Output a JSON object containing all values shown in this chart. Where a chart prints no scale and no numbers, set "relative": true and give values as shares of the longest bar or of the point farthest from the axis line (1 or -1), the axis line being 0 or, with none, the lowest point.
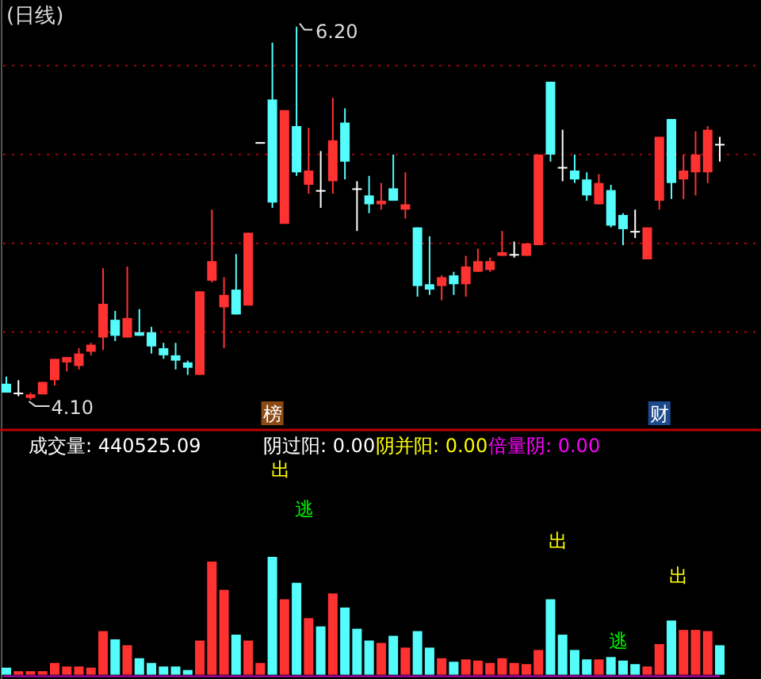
{
  "chart_data": [
    {
      "type": "candlestick",
      "title": "(日线)",
      "categories": [
        null,
        null,
        null,
        null,
        null,
        null,
        null,
        null,
        null,
        null,
        null,
        null,
        null,
        null,
        null,
        null,
        null,
        null,
        null,
        null,
        null,
        null,
        null,
        null,
        null,
        null,
        null,
        null,
        null,
        null,
        null,
        null,
        null,
        null,
        null,
        null,
        null,
        null,
        null,
        null,
        null,
        null,
        null,
        null,
        null,
        null,
        null,
        null,
        null,
        null,
        null,
        null,
        null,
        null,
        null,
        null,
        null,
        null,
        null,
        null
      ],
      "ohlc": [
        [
          4.19,
          4.23,
          4.14,
          4.14
        ],
        [
          4.14,
          4.21,
          4.12,
          4.14
        ],
        [
          4.11,
          4.14,
          4.1,
          4.13
        ],
        [
          4.13,
          4.2,
          4.13,
          4.2
        ],
        [
          4.21,
          4.33,
          4.18,
          4.33
        ],
        [
          4.31,
          4.34,
          4.26,
          4.34
        ],
        [
          4.29,
          4.39,
          4.27,
          4.36
        ],
        [
          4.37,
          4.42,
          4.35,
          4.41
        ],
        [
          4.45,
          4.84,
          4.38,
          4.64
        ],
        [
          4.55,
          4.6,
          4.43,
          4.46
        ],
        [
          4.45,
          4.85,
          4.45,
          4.56
        ],
        [
          4.48,
          4.61,
          4.46,
          4.46
        ],
        [
          4.48,
          4.51,
          4.36,
          4.4
        ],
        [
          4.39,
          4.42,
          4.33,
          4.35
        ],
        [
          4.35,
          4.42,
          4.27,
          4.32
        ],
        [
          4.31,
          4.32,
          4.24,
          4.28
        ],
        [
          4.24,
          4.71,
          4.24,
          4.71
        ],
        [
          4.77,
          5.17,
          4.76,
          4.88
        ],
        [
          4.62,
          4.79,
          4.39,
          4.69
        ],
        [
          4.72,
          4.92,
          4.58,
          4.58
        ],
        [
          4.63,
          5.04,
          4.63,
          5.04
        ],
        [
          5.55,
          5.55,
          5.55,
          5.55
        ],
        [
          5.79,
          6.11,
          5.18,
          5.21
        ],
        [
          5.09,
          5.73,
          5.09,
          5.73
        ],
        [
          5.64,
          6.2,
          5.36,
          5.38
        ],
        [
          5.31,
          5.63,
          5.26,
          5.39
        ],
        [
          5.28,
          5.5,
          5.18,
          5.28
        ],
        [
          5.33,
          5.8,
          5.26,
          5.56
        ],
        [
          5.66,
          5.74,
          5.34,
          5.44
        ],
        [
          5.29,
          5.33,
          5.05,
          5.29
        ],
        [
          5.25,
          5.36,
          5.15,
          5.2
        ],
        [
          5.2,
          5.32,
          5.17,
          5.22
        ],
        [
          5.29,
          5.48,
          5.22,
          5.22
        ],
        [
          5.17,
          5.38,
          5.12,
          5.2
        ],
        [
          5.07,
          5.07,
          4.68,
          4.74
        ],
        [
          4.75,
          5.02,
          4.69,
          4.72
        ],
        [
          4.74,
          4.8,
          4.66,
          4.79
        ],
        [
          4.8,
          4.82,
          4.69,
          4.75
        ],
        [
          4.75,
          4.91,
          4.68,
          4.85
        ],
        [
          4.82,
          4.95,
          4.82,
          4.88
        ],
        [
          4.83,
          4.9,
          4.82,
          4.88
        ],
        [
          4.91,
          5.05,
          4.91,
          4.93
        ],
        [
          4.92,
          4.99,
          4.9,
          4.92
        ],
        [
          4.91,
          4.98,
          4.91,
          4.98
        ],
        [
          4.97,
          5.48,
          4.97,
          5.48
        ],
        [
          5.89,
          5.89,
          5.44,
          5.48
        ],
        [
          5.41,
          5.62,
          5.33,
          5.41
        ],
        [
          5.39,
          5.48,
          5.32,
          5.34
        ],
        [
          5.34,
          5.38,
          5.22,
          5.25
        ],
        [
          5.2,
          5.37,
          5.2,
          5.32
        ],
        [
          5.28,
          5.31,
          5.07,
          5.08
        ],
        [
          5.14,
          5.15,
          4.97,
          5.06
        ],
        [
          5.05,
          5.17,
          5.01,
          5.05
        ],
        [
          4.89,
          5.07,
          4.89,
          5.07
        ],
        [
          5.22,
          5.58,
          5.17,
          5.58
        ],
        [
          5.68,
          5.68,
          5.23,
          5.32
        ],
        [
          5.34,
          5.48,
          5.23,
          5.39
        ],
        [
          5.38,
          5.61,
          5.25,
          5.48
        ],
        [
          5.38,
          5.64,
          5.32,
          5.62
        ],
        [
          5.54,
          5.58,
          5.44,
          5.54
        ]
      ],
      "colors": [
        "#54fcfc",
        "#ffffff",
        "#ff3232",
        "#ff3232",
        "#ff3232",
        "#ff3232",
        "#ff3232",
        "#ff3232",
        "#ff3232",
        "#54fcfc",
        "#ff3232",
        "#54fcfc",
        "#54fcfc",
        "#54fcfc",
        "#54fcfc",
        "#54fcfc",
        "#ff3232",
        "#ff3232",
        "#ff3232",
        "#54fcfc",
        "#ff3232",
        "#ffffff",
        "#54fcfc",
        "#ff3232",
        "#54fcfc",
        "#ff3232",
        "#ffffff",
        "#ff3232",
        "#54fcfc",
        "#ffffff",
        "#54fcfc",
        "#ff3232",
        "#54fcfc",
        "#ff3232",
        "#54fcfc",
        "#54fcfc",
        "#ff3232",
        "#54fcfc",
        "#ff3232",
        "#ff3232",
        "#ff3232",
        "#ff3232",
        "#ffffff",
        "#ff3232",
        "#ff3232",
        "#54fcfc",
        "#ffffff",
        "#54fcfc",
        "#54fcfc",
        "#ff3232",
        "#54fcfc",
        "#54fcfc",
        "#ffffff",
        "#ff3232",
        "#ff3232",
        "#54fcfc",
        "#ff3232",
        "#ff3232",
        "#ff3232",
        "#ffffff"
      ],
      "ylim": [
        3.93,
        6.35
      ],
      "yticks": [
        {
          "value": 4.48,
          "label": null
        },
        {
          "value": 4.98,
          "label": null
        },
        {
          "value": 5.48,
          "label": null
        },
        {
          "value": 5.98,
          "label": null
        }
      ],
      "grid": "y",
      "tick_labels": false,
      "annotations": [
        "6.20",
        "4.10",
        "榜",
        "财"
      ]
    },
    {
      "type": "bar",
      "relative": true,
      "tick_labels": false,
      "categories": [
        null,
        null,
        null,
        null,
        null,
        null,
        null,
        null,
        null,
        null,
        null,
        null,
        null,
        null,
        null,
        null,
        null,
        null,
        null,
        null,
        null,
        null,
        null,
        null,
        null,
        null,
        null,
        null,
        null,
        null,
        null,
        null,
        null,
        null,
        null,
        null,
        null,
        null,
        null,
        null,
        null,
        null,
        null,
        null,
        null,
        null,
        null,
        null,
        null,
        null,
        null,
        null,
        null,
        null,
        null,
        null,
        null,
        null,
        null,
        null
      ],
      "values": [
        0.06,
        0.03,
        0.03,
        0.03,
        0.1,
        0.07,
        0.07,
        0.06,
        0.37,
        0.3,
        0.25,
        0.14,
        0.1,
        0.07,
        0.07,
        0.04,
        0.29,
        0.96,
        0.72,
        0.34,
        0.29,
        0.1,
        1,
        0.64,
        0.78,
        0.48,
        0.41,
        0.69,
        0.57,
        0.39,
        0.29,
        0.27,
        0.33,
        0.23,
        0.37,
        0.23,
        0.14,
        0.11,
        0.13,
        0.12,
        0.1,
        0.14,
        0.1,
        0.09,
        0.21,
        0.64,
        0.34,
        0.21,
        0.13,
        0.13,
        0.15,
        0.12,
        0.09,
        0.07,
        0.26,
        0.46,
        0.38,
        0.38,
        0.37,
        0.25
      ],
      "colors": [
        "#54fcfc",
        "#ff3232",
        "#ff3232",
        "#ff3232",
        "#ff3232",
        "#ff3232",
        "#ff3232",
        "#ff3232",
        "#ff3232",
        "#54fcfc",
        "#ff3232",
        "#54fcfc",
        "#54fcfc",
        "#54fcfc",
        "#54fcfc",
        "#54fcfc",
        "#ff3232",
        "#ff3232",
        "#ff3232",
        "#54fcfc",
        "#ff3232",
        "#ff3232",
        "#54fcfc",
        "#ff3232",
        "#54fcfc",
        "#ff3232",
        "#54fcfc",
        "#ff3232",
        "#54fcfc",
        "#54fcfc",
        "#54fcfc",
        "#ff3232",
        "#54fcfc",
        "#ff3232",
        "#54fcfc",
        "#54fcfc",
        "#ff3232",
        "#54fcfc",
        "#ff3232",
        "#ff3232",
        "#ff3232",
        "#ff3232",
        "#ff3232",
        "#ff3232",
        "#ff3232",
        "#54fcfc",
        "#54fcfc",
        "#54fcfc",
        "#54fcfc",
        "#ff3232",
        "#54fcfc",
        "#54fcfc",
        "#54fcfc",
        "#ff3232",
        "#ff3232",
        "#54fcfc",
        "#ff3232",
        "#ff3232",
        "#ff3232",
        "#54fcfc"
      ],
      "annotations": [
        "成交量: 440525.09",
        "阴过阳: 0.00",
        "阴并阳: 0.00",
        "倍量阴: 0.00",
        "出",
        "逃",
        "出",
        "出",
        "逃"
      ]
    }
  ]
}
